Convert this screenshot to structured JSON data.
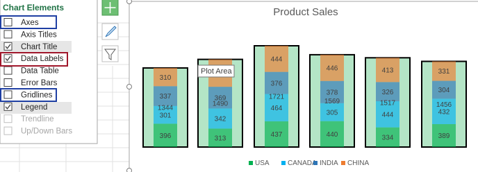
{
  "panel": {
    "title": "Chart Elements",
    "items": [
      {
        "label": "Axes",
        "checked": false,
        "enabled": true
      },
      {
        "label": "Axis Titles",
        "checked": false,
        "enabled": true
      },
      {
        "label": "Chart Title",
        "checked": true,
        "enabled": true
      },
      {
        "label": "Data Labels",
        "checked": true,
        "enabled": true
      },
      {
        "label": "Data Table",
        "checked": false,
        "enabled": true
      },
      {
        "label": "Error Bars",
        "checked": false,
        "enabled": true
      },
      {
        "label": "Gridlines",
        "checked": false,
        "enabled": true
      },
      {
        "label": "Legend",
        "checked": true,
        "enabled": true
      },
      {
        "label": "Trendline",
        "checked": false,
        "enabled": false
      },
      {
        "label": "Up/Down Bars",
        "checked": false,
        "enabled": false
      }
    ]
  },
  "tooltip": "Plot Area",
  "chart_data": {
    "type": "bar",
    "stacked": true,
    "title": "Product Sales",
    "categories": [
      null,
      null,
      null,
      null,
      null,
      null
    ],
    "series": [
      {
        "name": "USA",
        "color": "#00b050",
        "values": [
          396,
          313,
          437,
          440,
          334,
          389
        ]
      },
      {
        "name": "CANADA",
        "color": "#00b0f0",
        "values": [
          301,
          342,
          464,
          305,
          444,
          432
        ]
      },
      {
        "name": "INDIA",
        "color": "#2e75b6",
        "values": [
          337,
          369,
          376,
          378,
          326,
          304
        ]
      },
      {
        "name": "CHINA",
        "color": "#ed7d31",
        "values": [
          310,
          466,
          444,
          446,
          413,
          331
        ]
      }
    ],
    "totals": [
      1344,
      1490,
      1721,
      1569,
      1517,
      1456
    ],
    "totals_color": "#b4e5c6",
    "grid": false,
    "legend": "bottom"
  }
}
